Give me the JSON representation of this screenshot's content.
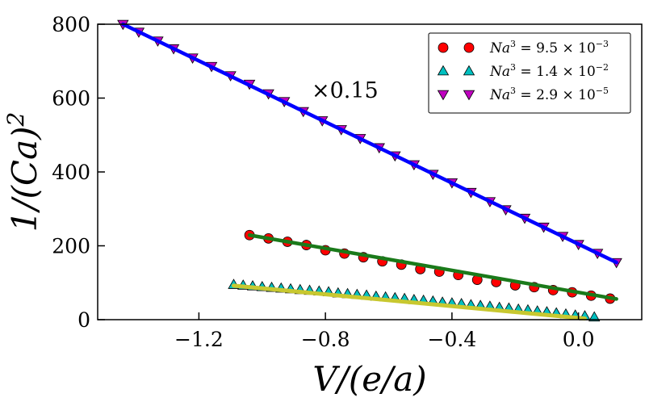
{
  "chart_data": {
    "type": "scatter",
    "title": "",
    "xlabel": "V/(e/a)",
    "ylabel": "1/(Ca)²",
    "xlim": [
      -1.52,
      0.2
    ],
    "ylim": [
      0,
      800
    ],
    "xticks": [
      -1.2,
      -0.8,
      -0.4,
      0.0
    ],
    "xtick_labels": [
      "−1.2",
      "−0.8",
      "−0.4",
      "0.0"
    ],
    "yticks": [
      0,
      200,
      400,
      600,
      800
    ],
    "ytick_labels": [
      "0",
      "200",
      "400",
      "600",
      "800"
    ],
    "annotation": "×0.15",
    "legend_position": "top-right",
    "series": [
      {
        "name": "Na³ = 9.5 × 10⁻³",
        "label_main": "Na",
        "label_rest": " = 9.5 × 10",
        "label_exp": "−3",
        "marker": "circle",
        "marker_color": "#ff0000",
        "fit_color": "#1a7a1a",
        "fit_line": [
          [
            -1.04,
            229
          ],
          [
            0.12,
            56
          ]
        ],
        "x": [
          -1.04,
          -0.98,
          -0.92,
          -0.86,
          -0.8,
          -0.74,
          -0.68,
          -0.62,
          -0.56,
          -0.5,
          -0.44,
          -0.38,
          -0.32,
          -0.26,
          -0.2,
          -0.14,
          -0.08,
          -0.02,
          0.04,
          0.1
        ],
        "y": [
          229,
          220,
          211,
          202,
          188,
          179,
          169,
          158,
          149,
          137,
          130,
          121,
          108,
          102,
          93,
          88,
          80,
          74,
          65,
          57
        ]
      },
      {
        "name": "Na³ = 1.4 × 10⁻²",
        "label_main": "Na",
        "label_rest": " = 1.4 × 10",
        "label_exp": "−2",
        "marker": "triangle-up",
        "marker_color": "#00c0c0",
        "fit_color": "#c8c830",
        "fit_line": [
          [
            -1.09,
            92
          ],
          [
            0.02,
            3
          ]
        ],
        "x": [
          -1.09,
          -1.06,
          -1.03,
          -1.0,
          -0.97,
          -0.94,
          -0.91,
          -0.88,
          -0.85,
          -0.82,
          -0.79,
          -0.76,
          -0.73,
          -0.7,
          -0.67,
          -0.64,
          -0.61,
          -0.58,
          -0.55,
          -0.52,
          -0.49,
          -0.46,
          -0.43,
          -0.4,
          -0.37,
          -0.34,
          -0.31,
          -0.28,
          -0.25,
          -0.22,
          -0.19,
          -0.16,
          -0.13,
          -0.1,
          -0.07,
          -0.04,
          -0.01,
          0.02,
          0.05
        ],
        "y": [
          95,
          93,
          91,
          89,
          87,
          85,
          83,
          81,
          79,
          77,
          75,
          72,
          70,
          68,
          66,
          63,
          61,
          59,
          57,
          54,
          52,
          50,
          47,
          45,
          43,
          40,
          38,
          36,
          33,
          31,
          28,
          26,
          23,
          21,
          18,
          15,
          12,
          10,
          7
        ]
      },
      {
        "name": "Na³ = 2.9 × 10⁻⁵",
        "label_main": "Na",
        "label_rest": " = 2.9 × 10",
        "label_exp": "−5",
        "marker": "triangle-down",
        "marker_color": "#c000c0",
        "fit_color": "#0000ff",
        "fit_line": [
          [
            -1.44,
            800
          ],
          [
            0.12,
            155
          ]
        ],
        "x": [
          -1.44,
          -1.39,
          -1.33,
          -1.28,
          -1.22,
          -1.16,
          -1.1,
          -1.04,
          -0.98,
          -0.93,
          -0.87,
          -0.81,
          -0.75,
          -0.69,
          -0.63,
          -0.58,
          -0.52,
          -0.46,
          -0.4,
          -0.34,
          -0.28,
          -0.23,
          -0.17,
          -0.11,
          -0.05,
          0.0,
          0.06,
          0.12
        ],
        "y": [
          800,
          779,
          755,
          734,
          709,
          686,
          661,
          638,
          612,
          591,
          564,
          539,
          515,
          491,
          466,
          444,
          420,
          394,
          371,
          345,
          320,
          298,
          275,
          251,
          226,
          204,
          180,
          155
        ]
      }
    ]
  }
}
